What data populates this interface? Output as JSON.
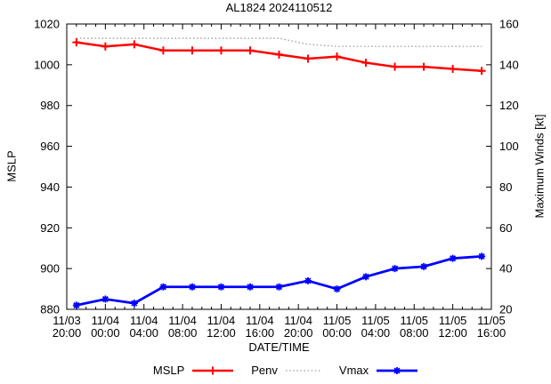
{
  "chart_data": {
    "type": "line",
    "title": "AL1824 2024110512",
    "xlabel": "DATE/TIME",
    "ylabel_left": "MSLP",
    "ylabel_right": "Maximum Winds [kt]",
    "grid": false,
    "legend_position": "bottom-center",
    "axis_color": "#000000",
    "background_color": "#ffffff",
    "x_axis": {
      "hours_span": 44,
      "major_tick_every_hours": 4,
      "minor_tick_every_hours": 1,
      "tick_labels": [
        [
          "11/03",
          "20:00"
        ],
        [
          "11/04",
          "00:00"
        ],
        [
          "11/04",
          "04:00"
        ],
        [
          "11/04",
          "08:00"
        ],
        [
          "11/04",
          "12:00"
        ],
        [
          "11/04",
          "16:00"
        ],
        [
          "11/04",
          "20:00"
        ],
        [
          "11/05",
          "00:00"
        ],
        [
          "11/05",
          "04:00"
        ],
        [
          "11/05",
          "08:00"
        ],
        [
          "11/05",
          "12:00"
        ],
        [
          "11/05",
          "16:00"
        ]
      ]
    },
    "y_left": {
      "min": 880,
      "max": 1020,
      "tick_step": 20,
      "tick_labels": [
        "880",
        "900",
        "920",
        "940",
        "960",
        "980",
        "1000",
        "1020"
      ]
    },
    "y_right": {
      "min": 20,
      "max": 160,
      "tick_step": 20,
      "tick_labels": [
        "20",
        "40",
        "60",
        "80",
        "100",
        "120",
        "140",
        "160"
      ]
    },
    "x_hours": [
      1,
      4,
      7,
      10,
      13,
      16,
      19,
      22,
      25,
      28,
      31,
      34,
      37,
      40,
      43
    ],
    "x_times": [
      "11/03 21:00",
      "11/04 00:00",
      "11/04 03:00",
      "11/04 06:00",
      "11/04 09:00",
      "11/04 12:00",
      "11/04 15:00",
      "11/04 18:00",
      "11/04 21:00",
      "11/05 00:00",
      "11/05 03:00",
      "11/05 06:00",
      "11/05 09:00",
      "11/05 12:00",
      "11/05 15:00"
    ],
    "series": [
      {
        "name": "MSLP",
        "axis": "left",
        "color": "#ff0000",
        "style": "solid",
        "marker": "plus",
        "values": [
          1011,
          1009,
          1010,
          1007,
          1007,
          1007,
          1007,
          1005,
          1003,
          1004,
          1001,
          999,
          999,
          998,
          997
        ]
      },
      {
        "name": "Penv",
        "axis": "left",
        "color": "#9c9c9c",
        "style": "dotted",
        "marker": "none",
        "values": [
          1013,
          1013,
          1013,
          1013,
          1013,
          1013,
          1013,
          1013,
          1010,
          1009,
          1009,
          1009,
          1009,
          1009,
          1009
        ]
      },
      {
        "name": "Vmax",
        "axis": "right",
        "color": "#0000ff",
        "style": "solid",
        "marker": "asterisk",
        "values": [
          22,
          25,
          23,
          31,
          31,
          31,
          31,
          31,
          34,
          30,
          36,
          40,
          41,
          45,
          46
        ]
      }
    ]
  }
}
